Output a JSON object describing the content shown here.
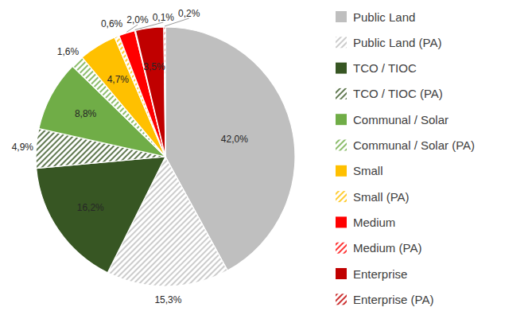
{
  "chart_data": {
    "type": "pie",
    "categories": [
      "Public Land",
      "Public Land (PA)",
      "TCO / TIOC",
      "TCO / TIOC (PA)",
      "Communal / Solar",
      "Communal / Solar (PA)",
      "Small",
      "Small (PA)",
      "Medium",
      "Medium (PA)",
      "Enterprise",
      "Enterprise (PA)"
    ],
    "values": [
      42.0,
      15.3,
      16.2,
      4.9,
      8.8,
      1.6,
      4.7,
      0.6,
      2.0,
      0.1,
      3.5,
      0.2
    ],
    "value_labels": [
      "42,0%",
      "15,3%",
      "16,2%",
      "4,9%",
      "8,8%",
      "1,6%",
      "4,7%",
      "0,6%",
      "2,0%",
      "0,1%",
      "3,5%",
      "0,2%"
    ],
    "colors": [
      "#bfbfbf",
      "#bfbfbf",
      "#375623",
      "#375623",
      "#70ad47",
      "#70ad47",
      "#ffc000",
      "#ffc000",
      "#ff0000",
      "#ff0000",
      "#c00000",
      "#c00000"
    ],
    "data_labels": true,
    "legend": "right"
  }
}
